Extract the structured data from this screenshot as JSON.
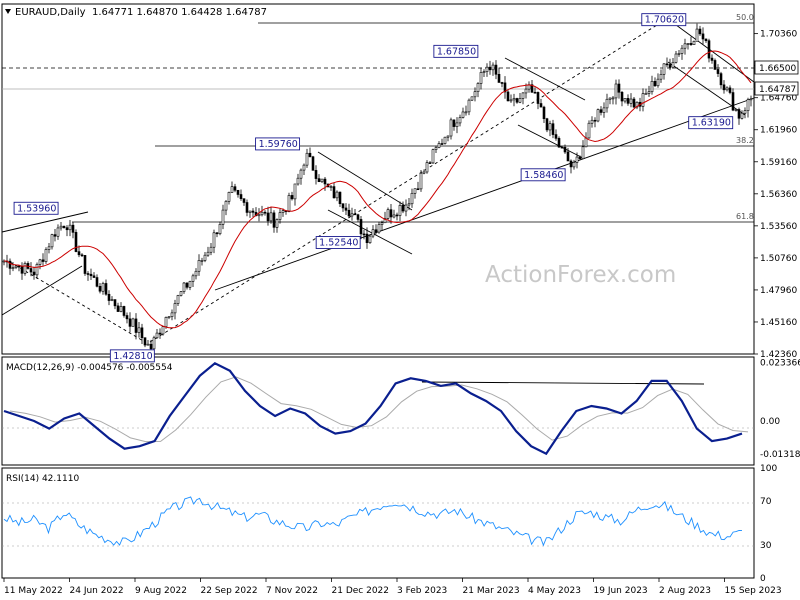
{
  "header": {
    "symbol": "EURAUD,Daily",
    "ohlc": "1.64771 1.64870 1.64428 1.64787"
  },
  "watermark": "ActionForex.com",
  "chart_data": [
    {
      "type": "candlestick",
      "title": "EURAUD,Daily",
      "ylim": [
        1.4236,
        1.7295
      ],
      "y_ticks": [
        "1.70360",
        "1.67560",
        "1.64760",
        "1.61960",
        "1.59160",
        "1.56360",
        "1.53560",
        "1.50760",
        "1.47960",
        "1.45160",
        "1.42360"
      ],
      "x_ticks": [
        "11 May 2022",
        "24 Jun 2022",
        "9 Aug 2022",
        "22 Sep 2022",
        "7 Nov 2022",
        "21 Dec 2022",
        "3 Feb 2023",
        "21 Mar 2023",
        "4 May 2023",
        "19 Jun 2023",
        "2 Aug 2023",
        "15 Sep 2023"
      ],
      "price_labels": {
        "level_line": "1.66500",
        "current": "1.64787"
      },
      "annotations": [
        {
          "text": "1.53960",
          "value": 1.5396
        },
        {
          "text": "1.42810",
          "value": 1.4281
        },
        {
          "text": "1.59760",
          "value": 1.5976
        },
        {
          "text": "1.52540",
          "value": 1.5254
        },
        {
          "text": "1.67850",
          "value": 1.6785
        },
        {
          "text": "1.58460",
          "value": 1.5846
        },
        {
          "text": "1.70620",
          "value": 1.7062
        },
        {
          "text": "1.63190",
          "value": 1.6319
        }
      ],
      "fib_levels": [
        {
          "label": "50.0",
          "value": 1.7075
        },
        {
          "label": "38.2",
          "value": 1.5986
        },
        {
          "label": "61.8",
          "value": 1.5369
        }
      ],
      "swing_points": [
        {
          "date": "2022-05-11",
          "close": 1.505
        },
        {
          "date": "2022-06-01",
          "close": 1.495
        },
        {
          "date": "2022-06-14",
          "close": 1.53
        },
        {
          "date": "2022-06-22",
          "close": 1.5396
        },
        {
          "date": "2022-07-05",
          "close": 1.497
        },
        {
          "date": "2022-07-20",
          "close": 1.475
        },
        {
          "date": "2022-08-03",
          "close": 1.455
        },
        {
          "date": "2022-08-18",
          "close": 1.4281
        },
        {
          "date": "2022-08-30",
          "close": 1.46
        },
        {
          "date": "2022-09-15",
          "close": 1.49
        },
        {
          "date": "2022-09-28",
          "close": 1.52
        },
        {
          "date": "2022-10-12",
          "close": 1.565
        },
        {
          "date": "2022-10-25",
          "close": 1.55
        },
        {
          "date": "2022-11-10",
          "close": 1.54
        },
        {
          "date": "2022-11-22",
          "close": 1.56
        },
        {
          "date": "2022-12-01",
          "close": 1.5976
        },
        {
          "date": "2022-12-14",
          "close": 1.57
        },
        {
          "date": "2022-12-28",
          "close": 1.555
        },
        {
          "date": "2023-01-11",
          "close": 1.5254
        },
        {
          "date": "2023-01-24",
          "close": 1.545
        },
        {
          "date": "2023-02-07",
          "close": 1.555
        },
        {
          "date": "2023-02-22",
          "close": 1.59
        },
        {
          "date": "2023-03-10",
          "close": 1.625
        },
        {
          "date": "2023-03-22",
          "close": 1.645
        },
        {
          "date": "2023-04-04",
          "close": 1.6785
        },
        {
          "date": "2023-04-19",
          "close": 1.64
        },
        {
          "date": "2023-05-02",
          "close": 1.655
        },
        {
          "date": "2023-05-15",
          "close": 1.62
        },
        {
          "date": "2023-05-31",
          "close": 1.5846
        },
        {
          "date": "2023-06-14",
          "close": 1.63
        },
        {
          "date": "2023-06-28",
          "close": 1.655
        },
        {
          "date": "2023-07-14",
          "close": 1.64
        },
        {
          "date": "2023-07-27",
          "close": 1.665
        },
        {
          "date": "2023-08-11",
          "close": 1.69
        },
        {
          "date": "2023-08-24",
          "close": 1.7062
        },
        {
          "date": "2023-09-06",
          "close": 1.67
        },
        {
          "date": "2023-09-20",
          "close": 1.6319
        },
        {
          "date": "2023-09-29",
          "close": 1.6479
        }
      ]
    },
    {
      "type": "line",
      "title": "MACD(12,26,9) -0.004576 -0.005554",
      "ylim": [
        -0.0175,
        0.0255
      ],
      "y_ticks": [
        "0.023366",
        "0.00",
        "-0.013186"
      ],
      "series": [
        {
          "values": [
            0.004,
            0.002,
            0.0,
            -0.003,
            0.001,
            0.003,
            -0.002,
            -0.007,
            -0.011,
            -0.01,
            -0.008,
            0.002,
            0.01,
            0.018,
            0.023,
            0.02,
            0.012,
            0.006,
            0.002,
            0.005,
            0.003,
            -0.002,
            -0.005,
            -0.004,
            -0.001,
            0.006,
            0.015,
            0.017,
            0.016,
            0.014,
            0.015,
            0.011,
            0.008,
            0.004,
            -0.004,
            -0.01,
            -0.013,
            -0.004,
            0.004,
            0.006,
            0.005,
            0.003,
            0.008,
            0.016,
            0.016,
            0.008,
            -0.003,
            -0.008,
            -0.007,
            -0.005
          ]
        }
      ]
    },
    {
      "type": "line",
      "title": "RSI(14) 42.1110",
      "ylim": [
        0,
        100
      ],
      "y_ticks": [
        "100",
        "70",
        "30",
        "0"
      ],
      "series": [
        {
          "values": [
            55,
            50,
            53,
            45,
            60,
            48,
            40,
            35,
            32,
            40,
            50,
            62,
            68,
            72,
            65,
            60,
            55,
            58,
            52,
            48,
            45,
            50,
            48,
            55,
            60,
            66,
            70,
            65,
            60,
            58,
            62,
            55,
            50,
            45,
            40,
            35,
            32,
            45,
            58,
            60,
            55,
            52,
            62,
            68,
            65,
            56,
            48,
            40,
            38,
            42
          ]
        }
      ]
    }
  ]
}
